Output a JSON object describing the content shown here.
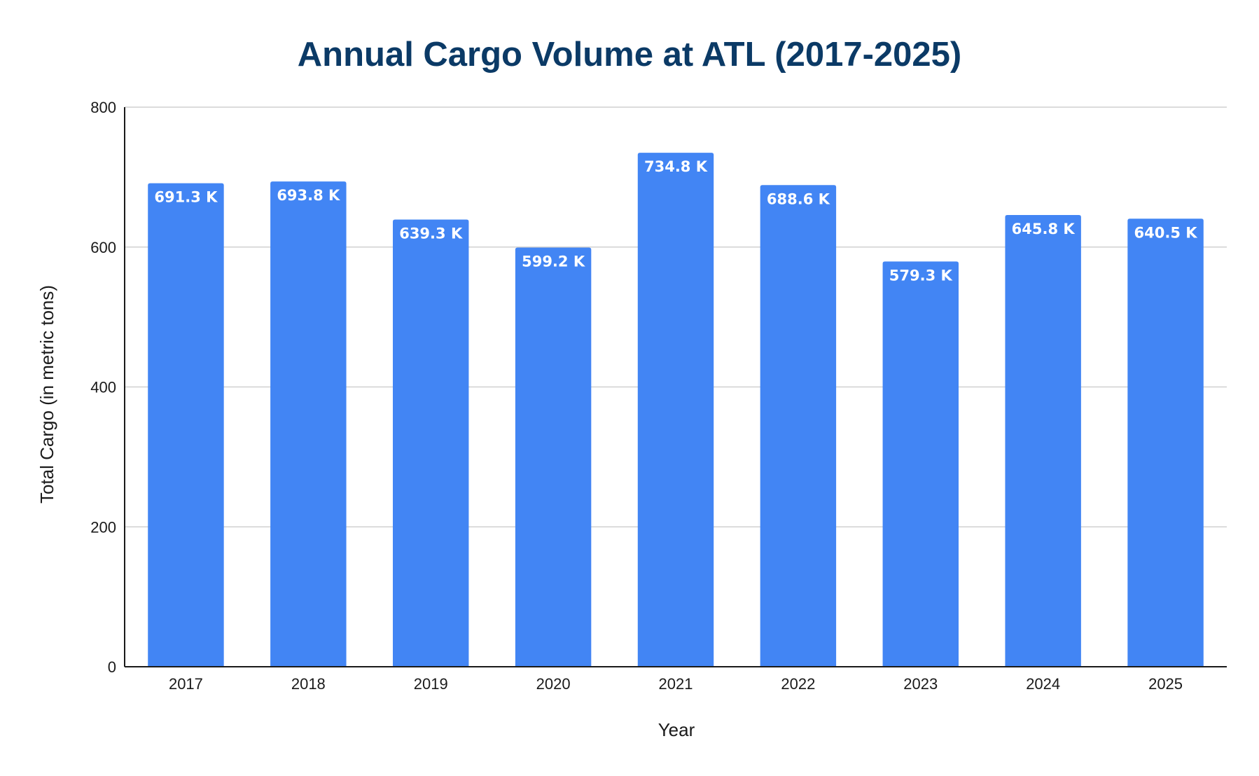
{
  "chart_data": {
    "type": "bar",
    "title": "Annual Cargo Volume at ATL (2017-2025)",
    "xlabel": "Year",
    "ylabel": "Total Cargo (in metric tons)",
    "categories": [
      "2017",
      "2018",
      "2019",
      "2020",
      "2021",
      "2022",
      "2023",
      "2024",
      "2025"
    ],
    "values": [
      691.3,
      693.8,
      639.3,
      599.2,
      734.8,
      688.6,
      579.3,
      645.8,
      640.5
    ],
    "data_labels": [
      "691.3 K",
      "693.8 K",
      "639.3 K",
      "599.2 K",
      "734.8 K",
      "688.6 K",
      "579.3 K",
      "645.8 K",
      "640.5 K"
    ],
    "ylim": [
      0,
      800
    ],
    "yticks": [
      0,
      200,
      400,
      600,
      800
    ],
    "ytick_labels": [
      "0",
      "200",
      "400",
      "600",
      "800"
    ],
    "grid": true,
    "legend": "none",
    "bar_color": "#4285f4",
    "title_color": "#0b3a66"
  }
}
